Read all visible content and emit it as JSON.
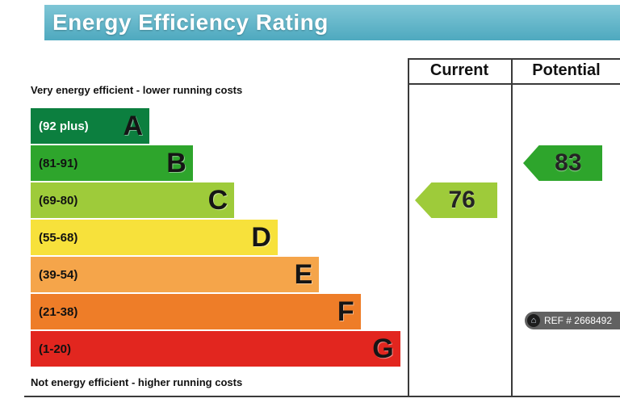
{
  "header": {
    "title": "Energy Efficiency Rating"
  },
  "table": {
    "current_label": "Current",
    "potential_label": "Potential"
  },
  "notes": {
    "top": "Very energy efficient - lower running costs",
    "bottom": "Not energy efficient - higher running costs"
  },
  "ref_badge": {
    "icon": "home-icon",
    "text": "REF # 2668492"
  },
  "colors": {
    "header_bg": "#57b2c6",
    "grid_line": "#3a3a3a"
  },
  "chart_data": {
    "type": "bar",
    "subtype": "epc-energy-rating-bands",
    "title": "Energy Efficiency Rating",
    "bands": [
      {
        "letter": "A",
        "range": "(92 plus)",
        "color": "#0c7f3f",
        "width_pct": 31.5,
        "text_color": "#ffffff"
      },
      {
        "letter": "B",
        "range": "(81-91)",
        "color": "#2ea52c",
        "width_pct": 43
      },
      {
        "letter": "C",
        "range": "(69-80)",
        "color": "#9ecb3a",
        "width_pct": 54
      },
      {
        "letter": "D",
        "range": "(55-68)",
        "color": "#f7e13b",
        "width_pct": 65.5
      },
      {
        "letter": "E",
        "range": "(39-54)",
        "color": "#f5a54a",
        "width_pct": 76.5
      },
      {
        "letter": "F",
        "range": "(21-38)",
        "color": "#ee7d28",
        "width_pct": 87.5
      },
      {
        "letter": "G",
        "range": "(1-20)",
        "color": "#e2261f",
        "width_pct": 98
      }
    ],
    "current": {
      "value": 76,
      "band": "C",
      "color": "#9ecb3a"
    },
    "potential": {
      "value": 83,
      "band": "B",
      "color": "#2ea52c"
    }
  }
}
